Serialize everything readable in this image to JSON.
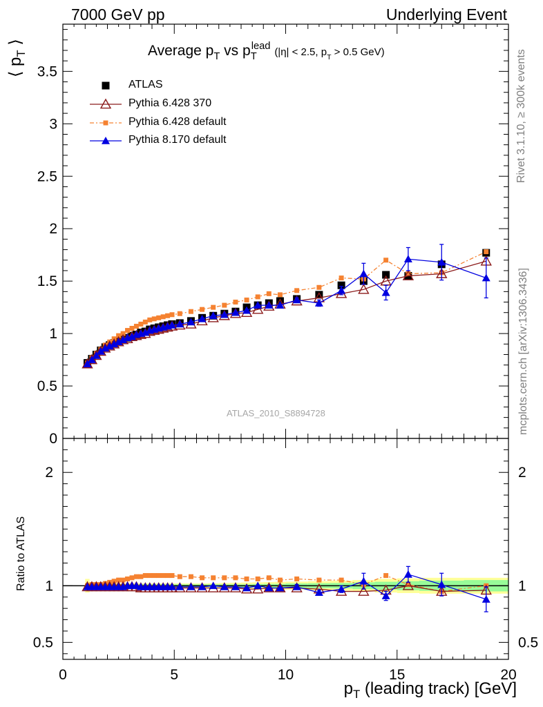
{
  "header": {
    "left": "7000 GeV pp",
    "right": "Underlying Event"
  },
  "side_labels": {
    "rivet": "Rivet 3.1.10, ≥ 300k events",
    "mcplots": "mcplots.cern.ch [arXiv:1306.3436]"
  },
  "analysis_id": "ATLAS_2010_S8894728",
  "colors": {
    "atlas": "#000000",
    "py6_370": "#8b1a1a",
    "py6_default": "#f58231",
    "py8": "#0000e0",
    "band_inner": "#98fb98",
    "band_outer": "#ffff99"
  },
  "chart_data": [
    {
      "type": "scatter",
      "title": "Average p_T vs p_T^lead (|η| < 2.5, p_T > 0.5 GeV)",
      "title_parts": {
        "main1": "Average p",
        "main1_sub": "T",
        "main2": " vs p",
        "main2_sub": "T",
        "main2_sup": "lead",
        "cuts": "(|η| < 2.5, p",
        "cuts_sub": "T",
        "cuts_end": " > 0.5 GeV)"
      },
      "ylabel": "⟨ p_T ⟩",
      "ylabel_parts": {
        "open": "⟨ p",
        "sub": "T",
        "close": " ⟩"
      },
      "xlim": [
        0,
        20
      ],
      "ylim": [
        0,
        3.95
      ],
      "yticks": [
        "0",
        "0.5",
        "1",
        "1.5",
        "2",
        "2.5",
        "3",
        "3.5"
      ],
      "legend_position": "top-left",
      "series": [
        {
          "name": "ATLAS",
          "marker": "square",
          "x": [
            1.1,
            1.3,
            1.5,
            1.7,
            1.9,
            2.1,
            2.3,
            2.5,
            2.7,
            2.9,
            3.1,
            3.3,
            3.5,
            3.7,
            3.9,
            4.1,
            4.3,
            4.5,
            4.7,
            4.9,
            5.25,
            5.75,
            6.25,
            6.75,
            7.25,
            7.75,
            8.25,
            8.75,
            9.25,
            9.75,
            10.5,
            11.5,
            12.5,
            13.5,
            14.5,
            15.5,
            17.0,
            19.0
          ],
          "y": [
            0.72,
            0.76,
            0.8,
            0.84,
            0.87,
            0.89,
            0.91,
            0.93,
            0.95,
            0.96,
            0.98,
            0.99,
            1.01,
            1.02,
            1.04,
            1.05,
            1.06,
            1.07,
            1.08,
            1.09,
            1.1,
            1.12,
            1.15,
            1.17,
            1.19,
            1.21,
            1.25,
            1.27,
            1.29,
            1.31,
            1.33,
            1.37,
            1.46,
            1.5,
            1.56,
            1.55,
            1.66,
            1.77
          ]
        },
        {
          "name": "Pythia 6.428 370",
          "marker": "open-triangle",
          "x": [
            1.1,
            1.3,
            1.5,
            1.7,
            1.9,
            2.1,
            2.3,
            2.5,
            2.7,
            2.9,
            3.1,
            3.3,
            3.5,
            3.7,
            3.9,
            4.1,
            4.3,
            4.5,
            4.7,
            4.9,
            5.25,
            5.75,
            6.25,
            6.75,
            7.25,
            7.75,
            8.25,
            8.75,
            9.25,
            9.75,
            10.5,
            11.5,
            12.5,
            13.5,
            14.5,
            15.5,
            17.0,
            19.0
          ],
          "y": [
            0.71,
            0.75,
            0.79,
            0.83,
            0.86,
            0.88,
            0.9,
            0.92,
            0.94,
            0.95,
            0.97,
            0.98,
            0.99,
            1.0,
            1.02,
            1.03,
            1.04,
            1.05,
            1.06,
            1.07,
            1.08,
            1.09,
            1.12,
            1.15,
            1.17,
            1.19,
            1.2,
            1.23,
            1.26,
            1.28,
            1.31,
            1.34,
            1.38,
            1.42,
            1.5,
            1.55,
            1.57,
            1.69
          ]
        },
        {
          "name": "Pythia 6.428 default",
          "marker": "small-square",
          "x": [
            1.1,
            1.3,
            1.5,
            1.7,
            1.9,
            2.1,
            2.3,
            2.5,
            2.7,
            2.9,
            3.1,
            3.3,
            3.5,
            3.7,
            3.9,
            4.1,
            4.3,
            4.5,
            4.7,
            4.9,
            5.25,
            5.75,
            6.25,
            6.75,
            7.25,
            7.75,
            8.25,
            8.75,
            9.25,
            9.75,
            10.5,
            11.5,
            12.5,
            13.5,
            14.5,
            15.5,
            17.0,
            19.0
          ],
          "y": [
            0.72,
            0.77,
            0.81,
            0.85,
            0.89,
            0.92,
            0.95,
            0.98,
            1.0,
            1.03,
            1.05,
            1.07,
            1.09,
            1.11,
            1.13,
            1.14,
            1.15,
            1.16,
            1.17,
            1.18,
            1.19,
            1.21,
            1.23,
            1.25,
            1.27,
            1.3,
            1.32,
            1.35,
            1.38,
            1.37,
            1.41,
            1.44,
            1.53,
            1.52,
            1.7,
            1.57,
            1.58,
            1.78
          ]
        },
        {
          "name": "Pythia 8.170 default",
          "marker": "filled-triangle",
          "x": [
            1.1,
            1.3,
            1.5,
            1.7,
            1.9,
            2.1,
            2.3,
            2.5,
            2.7,
            2.9,
            3.1,
            3.3,
            3.5,
            3.7,
            3.9,
            4.1,
            4.3,
            4.5,
            4.7,
            4.9,
            5.25,
            5.75,
            6.25,
            6.75,
            7.25,
            7.75,
            8.25,
            8.75,
            9.25,
            9.75,
            10.5,
            11.5,
            12.5,
            13.5,
            14.5,
            15.5,
            17.0,
            19.0
          ],
          "y": [
            0.71,
            0.75,
            0.79,
            0.83,
            0.86,
            0.88,
            0.9,
            0.92,
            0.94,
            0.96,
            0.97,
            0.99,
            1.0,
            1.01,
            1.03,
            1.04,
            1.05,
            1.06,
            1.07,
            1.08,
            1.09,
            1.11,
            1.14,
            1.17,
            1.18,
            1.2,
            1.22,
            1.27,
            1.27,
            1.27,
            1.32,
            1.29,
            1.41,
            1.57,
            1.39,
            1.71,
            1.68,
            1.53
          ],
          "yerr": [
            0,
            0,
            0,
            0,
            0,
            0,
            0,
            0,
            0,
            0,
            0,
            0,
            0,
            0,
            0,
            0,
            0,
            0,
            0,
            0,
            0,
            0,
            0,
            0,
            0,
            0,
            0,
            0,
            0,
            0,
            0.02,
            0.03,
            0.04,
            0.1,
            0.07,
            0.11,
            0.17,
            0.19
          ]
        }
      ]
    },
    {
      "type": "scatter",
      "ylabel": "Ratio to ATLAS",
      "xlabel": "p_T (leading track) [GeV]",
      "xlabel_parts": {
        "p": "p",
        "sub": "T",
        "rest": " (leading track) [GeV]"
      },
      "xlim": [
        0,
        20
      ],
      "ylim": [
        0.35,
        2.3
      ],
      "xticks": [
        "0",
        "5",
        "10",
        "15",
        "20"
      ],
      "yticks": [
        "0.5",
        "1",
        "2"
      ],
      "band": {
        "x_edges": [
          1.0,
          1.2,
          1.4,
          1.6,
          1.8,
          2.0,
          2.2,
          2.4,
          2.6,
          2.8,
          3.0,
          3.2,
          3.4,
          3.6,
          3.8,
          4.0,
          4.2,
          4.4,
          4.6,
          4.8,
          5.0,
          5.5,
          6.0,
          6.5,
          7.0,
          7.5,
          8.0,
          8.5,
          9.0,
          9.5,
          10.0,
          11.0,
          12.0,
          13.0,
          14.0,
          15.0,
          16.0,
          18.0,
          20.0
        ],
        "inner_half_width": [
          0.02,
          0.015,
          0.012,
          0.012,
          0.012,
          0.012,
          0.012,
          0.012,
          0.012,
          0.012,
          0.012,
          0.012,
          0.012,
          0.012,
          0.012,
          0.012,
          0.012,
          0.012,
          0.012,
          0.012,
          0.012,
          0.012,
          0.012,
          0.012,
          0.012,
          0.012,
          0.012,
          0.014,
          0.016,
          0.016,
          0.02,
          0.022,
          0.024,
          0.03,
          0.035,
          0.04,
          0.045,
          0.05
        ],
        "outer_half_width": [
          0.06,
          0.03,
          0.025,
          0.022,
          0.02,
          0.02,
          0.02,
          0.02,
          0.02,
          0.02,
          0.02,
          0.02,
          0.02,
          0.02,
          0.02,
          0.02,
          0.02,
          0.02,
          0.02,
          0.02,
          0.02,
          0.02,
          0.02,
          0.022,
          0.024,
          0.026,
          0.028,
          0.03,
          0.032,
          0.034,
          0.036,
          0.04,
          0.044,
          0.05,
          0.06,
          0.065,
          0.07,
          0.07
        ]
      },
      "series": [
        {
          "name": "Pythia 6.428 370",
          "marker": "open-triangle",
          "x": [
            1.1,
            1.3,
            1.5,
            1.7,
            1.9,
            2.1,
            2.3,
            2.5,
            2.7,
            2.9,
            3.1,
            3.3,
            3.5,
            3.7,
            3.9,
            4.1,
            4.3,
            4.5,
            4.7,
            4.9,
            5.25,
            5.75,
            6.25,
            6.75,
            7.25,
            7.75,
            8.25,
            8.75,
            9.25,
            9.75,
            10.5,
            11.5,
            12.5,
            13.5,
            14.5,
            15.5,
            17.0,
            19.0
          ],
          "y": [
            0.99,
            0.99,
            0.99,
            0.99,
            0.99,
            0.99,
            0.99,
            0.99,
            0.99,
            0.99,
            0.99,
            0.99,
            0.98,
            0.98,
            0.98,
            0.98,
            0.98,
            0.98,
            0.98,
            0.98,
            0.98,
            0.98,
            0.98,
            0.98,
            0.98,
            0.98,
            0.97,
            0.97,
            0.98,
            0.98,
            0.98,
            0.97,
            0.95,
            0.95,
            0.96,
            1.0,
            0.95,
            0.96
          ]
        },
        {
          "name": "Pythia 6.428 default",
          "marker": "small-square",
          "x": [
            1.1,
            1.3,
            1.5,
            1.7,
            1.9,
            2.1,
            2.3,
            2.5,
            2.7,
            2.9,
            3.1,
            3.3,
            3.5,
            3.7,
            3.9,
            4.1,
            4.3,
            4.5,
            4.7,
            4.9,
            5.25,
            5.75,
            6.25,
            6.75,
            7.25,
            7.75,
            8.25,
            8.75,
            9.25,
            9.75,
            10.5,
            11.5,
            12.5,
            13.5,
            14.5,
            15.5,
            17.0,
            19.0
          ],
          "y": [
            1.0,
            1.01,
            1.01,
            1.01,
            1.02,
            1.03,
            1.04,
            1.05,
            1.05,
            1.06,
            1.07,
            1.08,
            1.08,
            1.09,
            1.09,
            1.09,
            1.09,
            1.09,
            1.09,
            1.09,
            1.08,
            1.08,
            1.07,
            1.07,
            1.07,
            1.07,
            1.06,
            1.06,
            1.07,
            1.05,
            1.06,
            1.05,
            1.05,
            1.01,
            1.09,
            1.01,
            0.95,
            1.0
          ]
        },
        {
          "name": "Pythia 8.170 default",
          "marker": "filled-triangle",
          "x": [
            1.1,
            1.3,
            1.5,
            1.7,
            1.9,
            2.1,
            2.3,
            2.5,
            2.7,
            2.9,
            3.1,
            3.3,
            3.5,
            3.7,
            3.9,
            4.1,
            4.3,
            4.5,
            4.7,
            4.9,
            5.25,
            5.75,
            6.25,
            6.75,
            7.25,
            7.75,
            8.25,
            8.75,
            9.25,
            9.75,
            10.5,
            11.5,
            12.5,
            13.5,
            14.5,
            15.5,
            17.0,
            19.0
          ],
          "y": [
            0.99,
            0.99,
            0.99,
            0.99,
            0.99,
            0.99,
            0.99,
            0.99,
            0.99,
            1.0,
            1.0,
            1.0,
            0.99,
            0.99,
            0.99,
            0.99,
            0.99,
            0.99,
            0.99,
            0.99,
            0.99,
            0.99,
            0.99,
            1.0,
            0.99,
            0.99,
            0.98,
            1.0,
            0.98,
            0.98,
            0.99,
            0.94,
            0.97,
            1.04,
            0.91,
            1.1,
            1.01,
            0.88
          ],
          "yerr": [
            0,
            0,
            0,
            0,
            0,
            0,
            0,
            0,
            0,
            0,
            0,
            0,
            0,
            0,
            0,
            0,
            0,
            0,
            0,
            0,
            0,
            0,
            0,
            0,
            0,
            0,
            0,
            0,
            0,
            0,
            0.02,
            0.02,
            0.03,
            0.07,
            0.04,
            0.07,
            0.1,
            0.11
          ]
        }
      ]
    }
  ]
}
